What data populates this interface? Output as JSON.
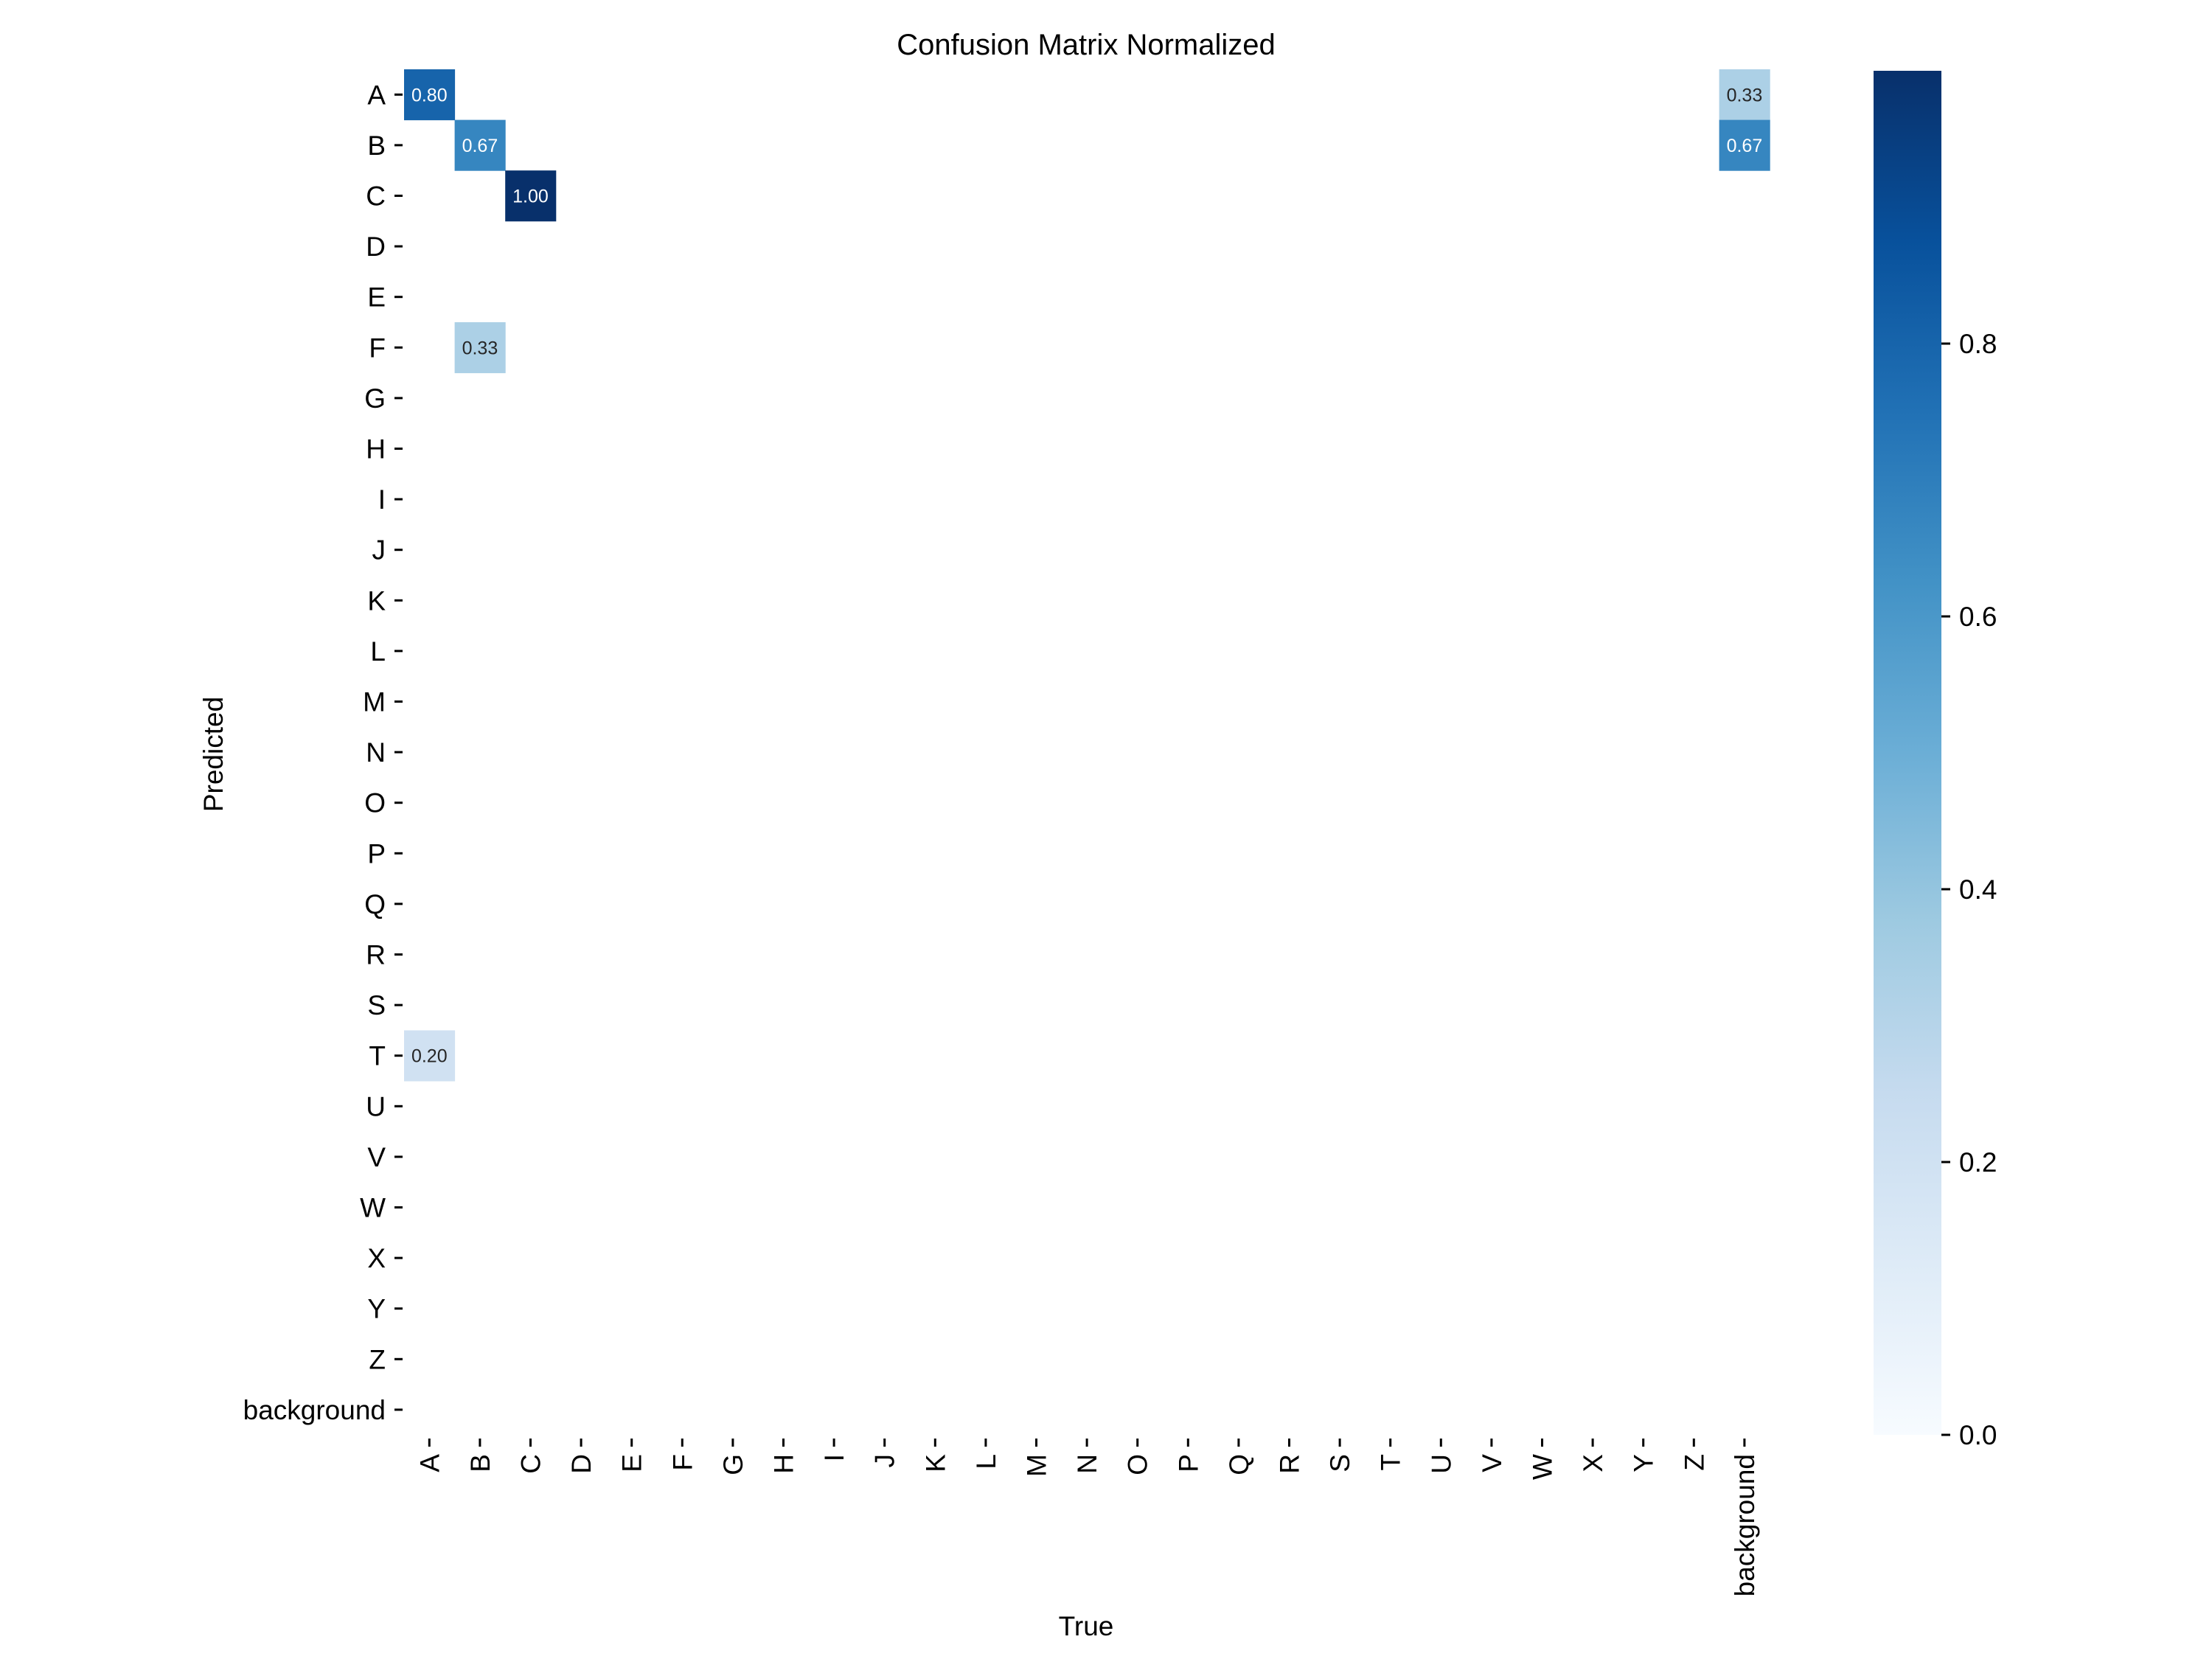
{
  "chart_data": {
    "type": "heatmap",
    "title": "Confusion Matrix Normalized",
    "xlabel": "True",
    "ylabel": "Predicted",
    "x_categories": [
      "A",
      "B",
      "C",
      "D",
      "E",
      "F",
      "G",
      "H",
      "I",
      "J",
      "K",
      "L",
      "M",
      "N",
      "O",
      "P",
      "Q",
      "R",
      "S",
      "T",
      "U",
      "V",
      "W",
      "X",
      "Y",
      "Z",
      "background"
    ],
    "y_categories": [
      "A",
      "B",
      "C",
      "D",
      "E",
      "F",
      "G",
      "H",
      "I",
      "J",
      "K",
      "L",
      "M",
      "N",
      "O",
      "P",
      "Q",
      "R",
      "S",
      "T",
      "U",
      "V",
      "W",
      "X",
      "Y",
      "Z",
      "background"
    ],
    "cells": [
      {
        "predicted": "A",
        "true": "A",
        "value": 0.8,
        "label": "0.80"
      },
      {
        "predicted": "A",
        "true": "background",
        "value": 0.33,
        "label": "0.33"
      },
      {
        "predicted": "B",
        "true": "B",
        "value": 0.67,
        "label": "0.67"
      },
      {
        "predicted": "B",
        "true": "background",
        "value": 0.67,
        "label": "0.67"
      },
      {
        "predicted": "C",
        "true": "C",
        "value": 1.0,
        "label": "1.00"
      },
      {
        "predicted": "F",
        "true": "B",
        "value": 0.33,
        "label": "0.33"
      },
      {
        "predicted": "T",
        "true": "A",
        "value": 0.2,
        "label": "0.20"
      }
    ],
    "colorbar": {
      "colormap": "Blues",
      "range": [
        0,
        1.0
      ],
      "ticks": [
        "0.0",
        "0.2",
        "0.4",
        "0.6",
        "0.8"
      ]
    },
    "grid": false,
    "empty_cells_blank": true
  }
}
